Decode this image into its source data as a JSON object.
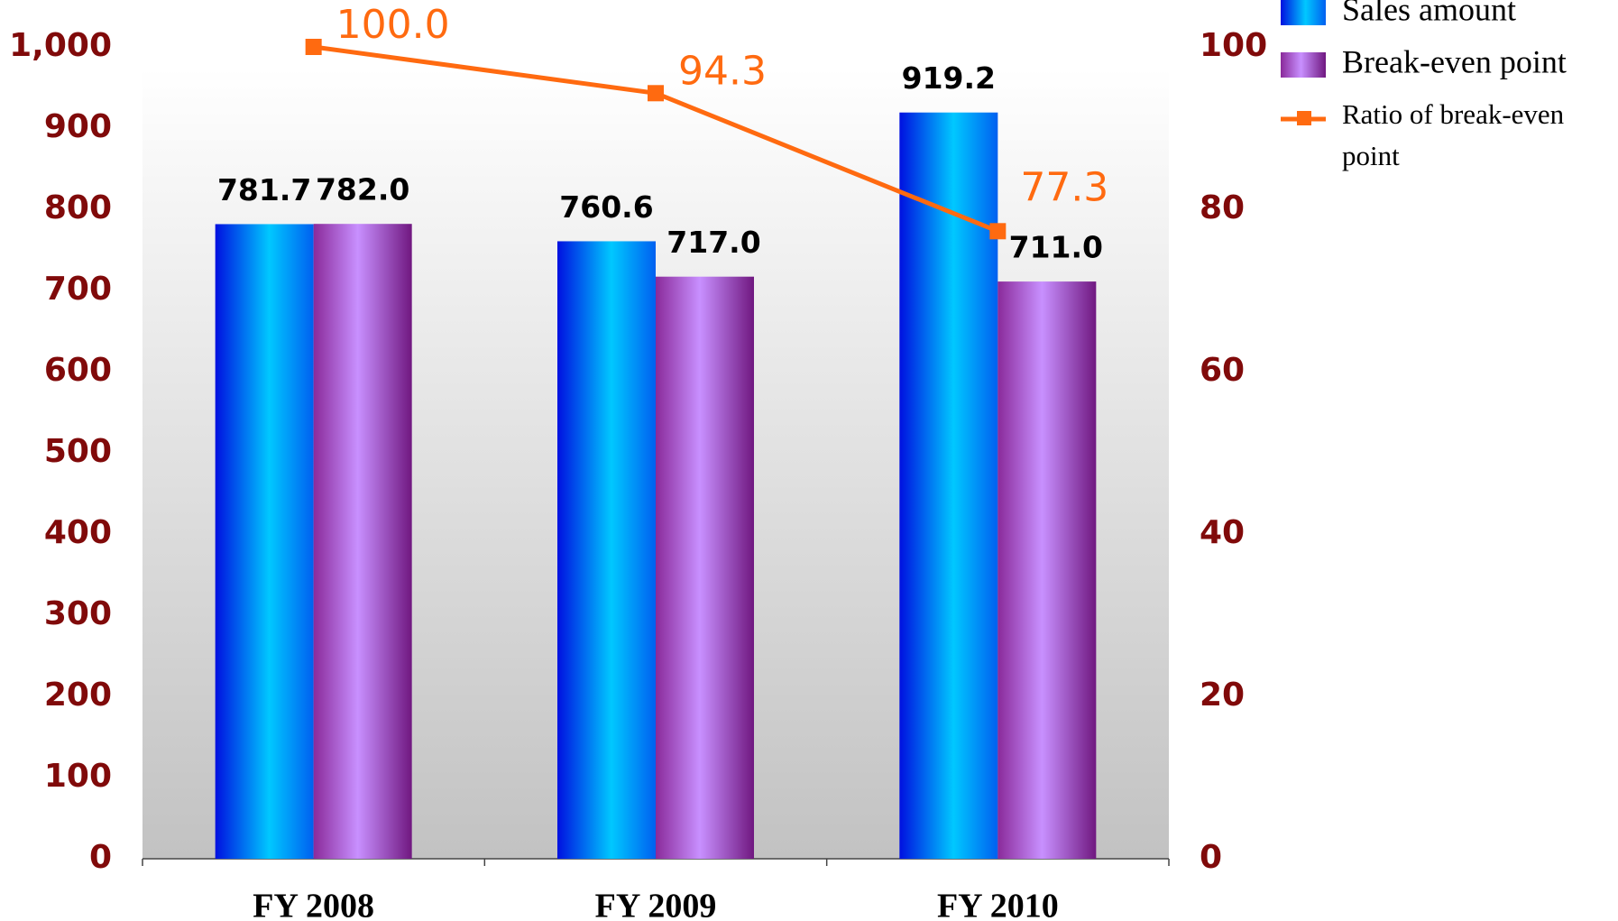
{
  "chart_data": {
    "type": "bar",
    "categories": [
      "FY 2008",
      "FY 2009",
      "FY 2010"
    ],
    "series": [
      {
        "name": "Sales amount",
        "color": "#00c8ff",
        "values": [
          781.7,
          760.6,
          919.2
        ],
        "value_labels": [
          "781.7",
          "760.6",
          "919.2"
        ]
      },
      {
        "name": "Break-even point",
        "color": "#c080f0",
        "values": [
          782.0,
          717.0,
          711.0
        ],
        "value_labels": [
          "782.0",
          "717.0",
          "711.0"
        ]
      },
      {
        "name": "Ratio of break-even point",
        "type": "line",
        "axis": "y2",
        "color": "#ff6a10",
        "values": [
          100.0,
          94.3,
          77.3
        ],
        "value_labels": [
          "100.0",
          "94.3",
          "77.3"
        ]
      }
    ],
    "ylim": [
      0,
      1000
    ],
    "yticks": [
      0,
      100,
      200,
      300,
      400,
      500,
      600,
      700,
      800,
      900,
      {
        "value": 1000,
        "label": "1,000"
      }
    ],
    "y2lim": [
      0,
      100
    ],
    "y2ticks": [
      0,
      20,
      40,
      60,
      80,
      100
    ],
    "legend": "right"
  }
}
